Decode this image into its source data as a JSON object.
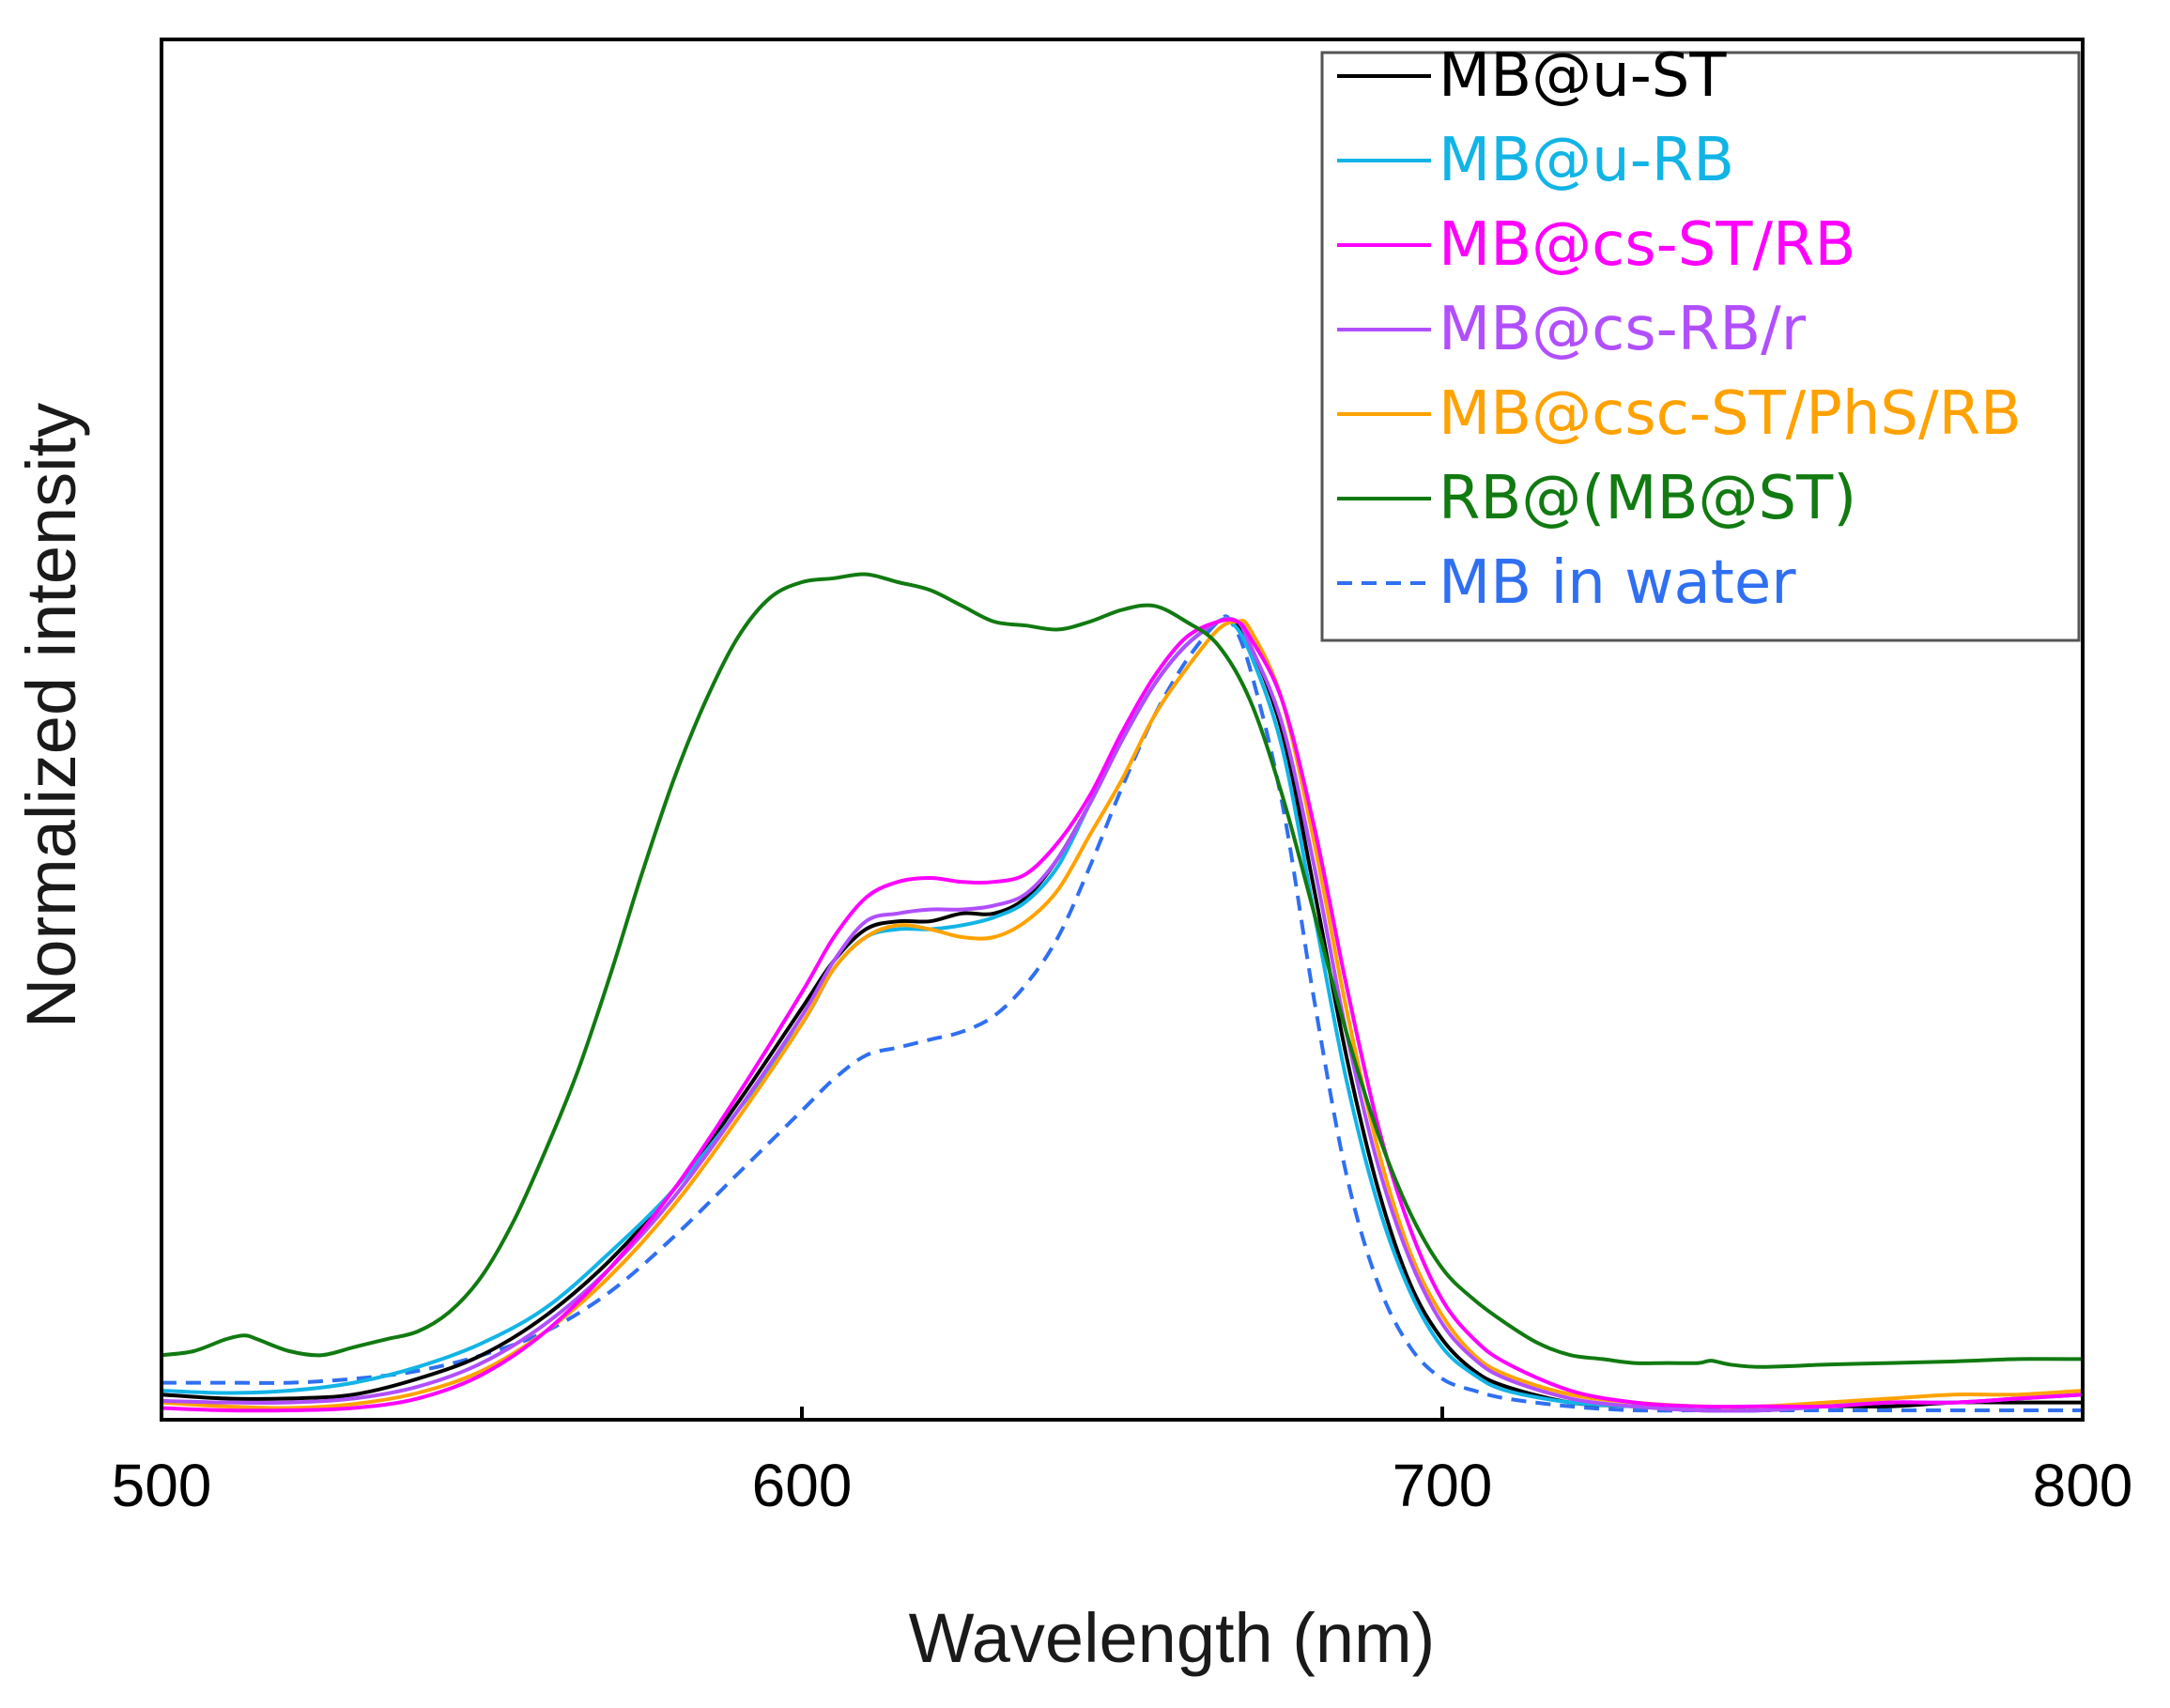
{
  "chart_data": {
    "type": "line",
    "title": "",
    "xlabel": "Wavelength (nm)",
    "ylabel": "Normalized intensity",
    "xlim": [
      500,
      800
    ],
    "ylim": [
      0,
      1.75
    ],
    "xticks": [
      "500",
      "600",
      "700",
      "800"
    ],
    "yticks_visible": false,
    "legend_position": "top-right",
    "series": [
      {
        "name": "MB@u-ST",
        "color": "#000000",
        "dash": false,
        "x": [
          500,
          510,
          520,
          530,
          540,
          550,
          560,
          570,
          580,
          590,
          600,
          605,
          610,
          615,
          620,
          625,
          630,
          635,
          640,
          645,
          650,
          655,
          660,
          665,
          667,
          670,
          675,
          680,
          685,
          690,
          695,
          700,
          705,
          710,
          720,
          730,
          740,
          750,
          760,
          770,
          780,
          790,
          800
        ],
        "y": [
          0.02,
          0.015,
          0.015,
          0.02,
          0.04,
          0.07,
          0.12,
          0.19,
          0.28,
          0.39,
          0.51,
          0.57,
          0.61,
          0.62,
          0.62,
          0.63,
          0.63,
          0.65,
          0.7,
          0.77,
          0.85,
          0.92,
          0.97,
          1.0,
          1.0,
          0.97,
          0.86,
          0.66,
          0.45,
          0.28,
          0.16,
          0.09,
          0.05,
          0.03,
          0.01,
          0.005,
          0.0,
          0.0,
          0.005,
          0.005,
          0.01,
          0.01,
          0.01
        ]
      },
      {
        "name": "MB@u-RB",
        "color": "#12b4e6",
        "dash": false,
        "x": [
          500,
          510,
          520,
          530,
          540,
          550,
          560,
          570,
          580,
          590,
          600,
          605,
          610,
          615,
          620,
          625,
          630,
          635,
          640,
          645,
          650,
          655,
          660,
          665,
          667,
          670,
          675,
          680,
          685,
          690,
          695,
          700,
          705,
          710,
          720,
          730,
          740,
          750,
          760,
          770,
          780,
          790,
          800
        ],
        "y": [
          0.025,
          0.022,
          0.025,
          0.035,
          0.055,
          0.085,
          0.13,
          0.2,
          0.28,
          0.38,
          0.49,
          0.56,
          0.6,
          0.61,
          0.61,
          0.615,
          0.625,
          0.645,
          0.69,
          0.77,
          0.85,
          0.92,
          0.97,
          1.0,
          1.0,
          0.96,
          0.84,
          0.63,
          0.42,
          0.26,
          0.15,
          0.08,
          0.045,
          0.025,
          0.01,
          0.005,
          0.0,
          0.0,
          0.005,
          0.01,
          0.01,
          0.015,
          0.02
        ]
      },
      {
        "name": "MB@cs-ST/RB",
        "color": "#ff00ff",
        "dash": false,
        "x": [
          500,
          510,
          520,
          530,
          540,
          550,
          560,
          570,
          580,
          590,
          600,
          605,
          610,
          615,
          620,
          625,
          630,
          635,
          640,
          645,
          650,
          655,
          660,
          665,
          668,
          670,
          675,
          680,
          685,
          690,
          695,
          700,
          705,
          710,
          720,
          730,
          740,
          750,
          760,
          770,
          780,
          790,
          800
        ],
        "y": [
          0.003,
          0.0,
          0.0,
          0.003,
          0.015,
          0.045,
          0.1,
          0.18,
          0.28,
          0.4,
          0.53,
          0.6,
          0.65,
          0.67,
          0.675,
          0.67,
          0.67,
          0.68,
          0.72,
          0.78,
          0.86,
          0.93,
          0.98,
          1.0,
          1.0,
          0.98,
          0.9,
          0.74,
          0.54,
          0.36,
          0.23,
          0.14,
          0.09,
          0.06,
          0.025,
          0.01,
          0.005,
          0.005,
          0.005,
          0.01,
          0.01,
          0.015,
          0.02
        ]
      },
      {
        "name": "MB@cs-RB/r",
        "color": "#b14fff",
        "dash": false,
        "x": [
          500,
          510,
          520,
          530,
          540,
          550,
          560,
          570,
          580,
          590,
          600,
          605,
          610,
          615,
          620,
          625,
          630,
          635,
          640,
          645,
          650,
          655,
          660,
          665,
          668,
          670,
          675,
          680,
          685,
          690,
          695,
          700,
          705,
          710,
          720,
          730,
          740,
          750,
          760,
          770,
          780,
          790,
          800
        ],
        "y": [
          0.012,
          0.01,
          0.01,
          0.015,
          0.03,
          0.06,
          0.11,
          0.18,
          0.27,
          0.38,
          0.5,
          0.57,
          0.62,
          0.63,
          0.635,
          0.635,
          0.64,
          0.655,
          0.7,
          0.77,
          0.85,
          0.92,
          0.97,
          1.0,
          1.0,
          0.97,
          0.87,
          0.69,
          0.48,
          0.31,
          0.19,
          0.11,
          0.065,
          0.04,
          0.015,
          0.005,
          0.0,
          0.0,
          0.005,
          0.01,
          0.01,
          0.015,
          0.02
        ]
      },
      {
        "name": "MB@csc-ST/PhS/RB",
        "color": "#ffa200",
        "dash": false,
        "x": [
          500,
          510,
          520,
          530,
          540,
          550,
          560,
          570,
          580,
          590,
          600,
          605,
          610,
          615,
          620,
          625,
          630,
          635,
          640,
          645,
          650,
          655,
          660,
          665,
          668,
          670,
          675,
          680,
          685,
          690,
          695,
          700,
          705,
          710,
          720,
          730,
          740,
          750,
          760,
          770,
          780,
          790,
          800
        ],
        "y": [
          0.01,
          0.005,
          0.003,
          0.008,
          0.022,
          0.05,
          0.1,
          0.17,
          0.26,
          0.37,
          0.49,
          0.56,
          0.6,
          0.615,
          0.61,
          0.6,
          0.6,
          0.62,
          0.66,
          0.73,
          0.8,
          0.88,
          0.94,
          0.99,
          1.0,
          0.99,
          0.9,
          0.72,
          0.51,
          0.33,
          0.2,
          0.12,
          0.07,
          0.045,
          0.02,
          0.01,
          0.005,
          0.005,
          0.01,
          0.015,
          0.02,
          0.02,
          0.025
        ]
      },
      {
        "name": "RB@(MB@ST)",
        "color": "#117a11",
        "dash": false,
        "x": [
          500,
          505,
          510,
          513,
          515,
          520,
          525,
          530,
          535,
          540,
          545,
          550,
          555,
          560,
          565,
          570,
          575,
          580,
          585,
          590,
          595,
          600,
          605,
          610,
          615,
          620,
          625,
          630,
          635,
          640,
          645,
          650,
          655,
          660,
          665,
          670,
          675,
          680,
          685,
          690,
          695,
          700,
          705,
          710,
          715,
          720,
          725,
          730,
          735,
          740,
          742,
          745,
          750,
          760,
          770,
          780,
          790,
          800
        ],
        "y": [
          0.07,
          0.075,
          0.09,
          0.095,
          0.09,
          0.075,
          0.07,
          0.08,
          0.09,
          0.1,
          0.125,
          0.17,
          0.24,
          0.33,
          0.43,
          0.55,
          0.68,
          0.8,
          0.9,
          0.98,
          1.03,
          1.05,
          1.055,
          1.06,
          1.05,
          1.04,
          1.02,
          1.0,
          0.995,
          0.99,
          1.0,
          1.015,
          1.02,
          1.0,
          0.97,
          0.9,
          0.78,
          0.63,
          0.48,
          0.35,
          0.25,
          0.18,
          0.14,
          0.11,
          0.085,
          0.07,
          0.065,
          0.06,
          0.06,
          0.06,
          0.063,
          0.058,
          0.055,
          0.058,
          0.06,
          0.062,
          0.065,
          0.065
        ]
      },
      {
        "name": "MB in water",
        "color": "#2f6ff2",
        "dash": true,
        "x": [
          500,
          510,
          520,
          530,
          540,
          550,
          560,
          570,
          580,
          590,
          600,
          605,
          610,
          615,
          620,
          625,
          630,
          635,
          640,
          645,
          650,
          655,
          660,
          665,
          667,
          670,
          675,
          680,
          685,
          690,
          695,
          700,
          705,
          710,
          720,
          730,
          740,
          750,
          760,
          770,
          780,
          790,
          800
        ],
        "y": [
          0.035,
          0.035,
          0.035,
          0.04,
          0.05,
          0.07,
          0.1,
          0.15,
          0.22,
          0.3,
          0.38,
          0.42,
          0.45,
          0.46,
          0.47,
          0.48,
          0.5,
          0.54,
          0.6,
          0.69,
          0.79,
          0.88,
          0.95,
          1.0,
          1.0,
          0.94,
          0.77,
          0.52,
          0.3,
          0.16,
          0.08,
          0.04,
          0.025,
          0.015,
          0.005,
          0.0,
          0.0,
          0.0,
          0.0,
          0.0,
          0.0,
          0.0,
          0.0
        ]
      }
    ]
  }
}
